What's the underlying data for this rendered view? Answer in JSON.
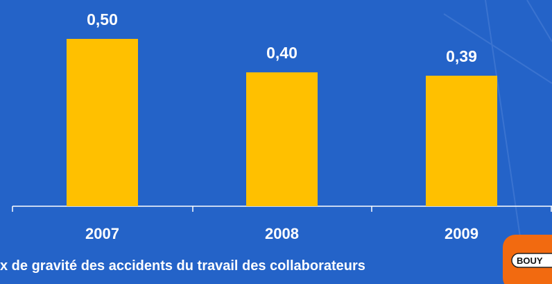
{
  "chart_data": {
    "type": "bar",
    "title": "x de gravité des accidents du travail des collaborateurs",
    "categories": [
      "2007",
      "2008",
      "2009"
    ],
    "values": [
      0.5,
      0.4,
      0.39
    ],
    "value_labels": [
      "0,50",
      "0,40",
      "0,39"
    ],
    "color": "#ffc000"
  },
  "logo": "BOUY"
}
